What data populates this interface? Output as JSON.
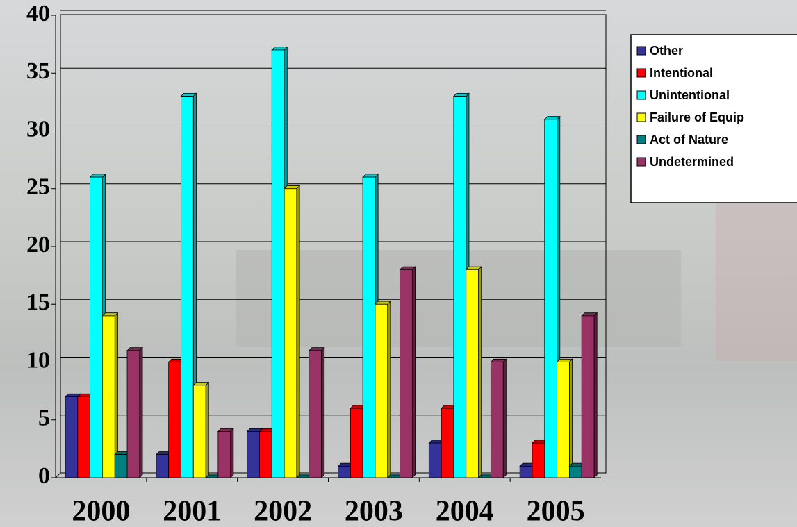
{
  "chart_data": {
    "type": "bar",
    "categories": [
      "2000",
      "2001",
      "2002",
      "2003",
      "2004",
      "2005"
    ],
    "series": [
      {
        "name": "Other",
        "color": "#333399",
        "values": [
          7,
          2,
          4,
          1,
          3,
          1
        ]
      },
      {
        "name": "Intentional",
        "color": "#ff0000",
        "values": [
          7,
          10,
          4,
          6,
          6,
          3
        ]
      },
      {
        "name": "Unintentional",
        "color": "#00ffff",
        "values": [
          26,
          33,
          37,
          26,
          33,
          31
        ]
      },
      {
        "name": "Failure of Equip",
        "color": "#ffff00",
        "values": [
          14,
          8,
          25,
          15,
          18,
          10
        ]
      },
      {
        "name": "Act of Nature",
        "color": "#008080",
        "values": [
          2,
          0,
          0,
          0,
          0,
          1
        ]
      },
      {
        "name": "Undetermined",
        "color": "#993366",
        "values": [
          11,
          4,
          11,
          18,
          10,
          14
        ]
      }
    ],
    "ylim": [
      0,
      40
    ],
    "yticks": [
      0,
      5,
      10,
      15,
      20,
      25,
      30,
      35,
      40
    ],
    "grid": true,
    "legend": "right"
  }
}
